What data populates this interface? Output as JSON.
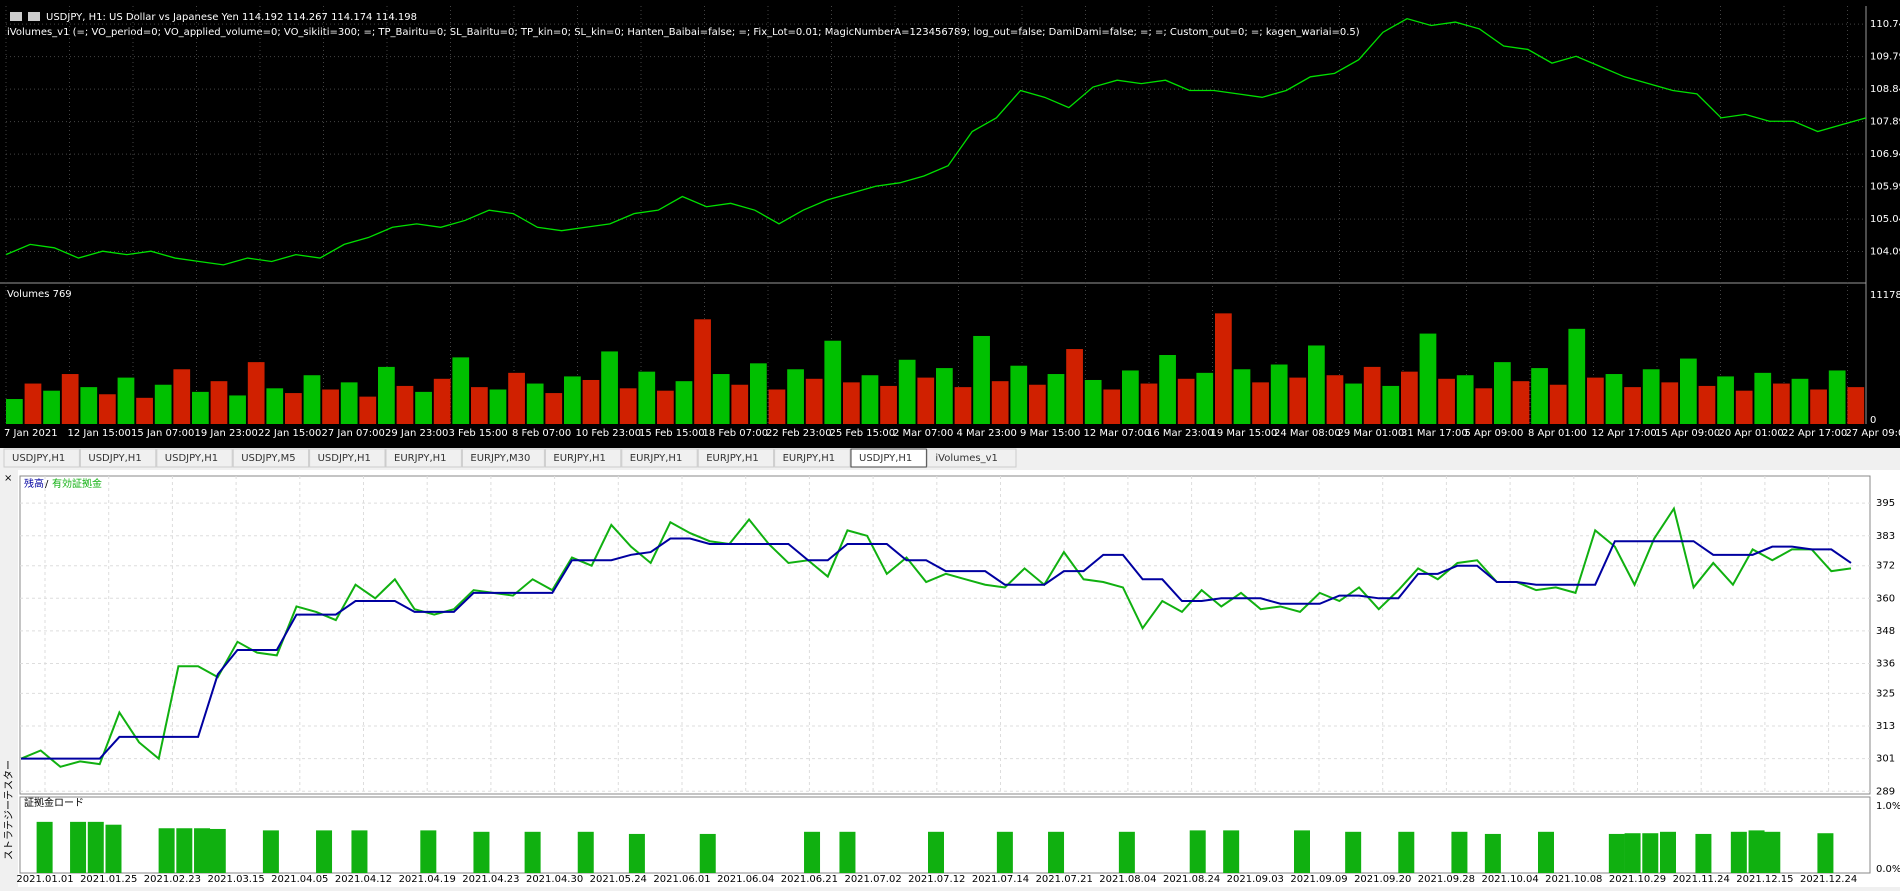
{
  "price_chart": {
    "header": "USDJPY, H1:  US Dollar vs Japanese Yen  114.192 114.267 114.174 114.198",
    "indicator": "iVolumes_v1 (=; VO_period=0; VO_applied_volume=0; VO_sikiiti=300; =; TP_Bairitu=0; SL_Bairitu=0; TP_kin=0; SL_kin=0; Hanten_Baibai=false; =; Fix_Lot=0.01; MagicNumberA=123456789; log_out=false; DamiDami=false; =; =; Custom_out=0; =; kagen_wariai=0.5)",
    "color": "#00e000",
    "values": [
      104.0,
      104.3,
      104.2,
      103.9,
      104.1,
      104.0,
      104.1,
      103.9,
      103.8,
      103.7,
      103.9,
      103.8,
      104.0,
      103.9,
      104.3,
      104.5,
      104.8,
      104.9,
      104.8,
      105.0,
      105.3,
      105.2,
      104.8,
      104.7,
      104.8,
      104.9,
      105.2,
      105.3,
      105.7,
      105.4,
      105.5,
      105.3,
      104.9,
      105.3,
      105.6,
      105.8,
      106.0,
      106.1,
      106.3,
      106.6,
      107.6,
      108.0,
      108.8,
      108.6,
      108.3,
      108.9,
      109.1,
      109.0,
      109.1,
      108.8,
      108.8,
      108.7,
      108.6,
      108.8,
      109.2,
      109.3,
      109.7,
      110.5,
      110.9,
      110.7,
      110.8,
      110.6,
      110.1,
      110.0,
      109.6,
      109.8,
      109.5,
      109.2,
      109.0,
      108.8,
      108.7,
      108.0,
      108.1,
      107.9,
      107.9,
      107.6,
      107.8,
      108.0
    ],
    "ylim": [
      103.2,
      111.27
    ],
    "yticks": [
      110.74,
      109.79,
      108.84,
      107.89,
      106.94,
      105.99,
      105.04,
      104.09
    ]
  },
  "volume_chart": {
    "label": "Volumes 769",
    "colors": [
      "#00c000",
      "#d02000"
    ],
    "values": [
      2100,
      3400,
      2800,
      4200,
      3100,
      2500,
      3900,
      2200,
      3300,
      4600,
      2700,
      3600,
      2400,
      5200,
      3000,
      2600,
      4100,
      2900,
      3500,
      2300,
      4800,
      3200,
      2700,
      3800,
      5600,
      3100,
      2900,
      4300,
      3400,
      2600,
      4000,
      3700,
      6100,
      3000,
      4400,
      2800,
      3600,
      8800,
      4200,
      3300,
      5100,
      2900,
      4600,
      3800,
      7000,
      3500,
      4100,
      3200,
      5400,
      3900,
      4700,
      3100,
      7400,
      3600,
      4900,
      3300,
      4200,
      6300,
      3700,
      2900,
      4500,
      3400,
      5800,
      3800,
      4300,
      9300,
      4600,
      3500,
      5000,
      3900,
      6600,
      4100,
      3400,
      4800,
      3200,
      4400,
      7600,
      3800,
      4100,
      3000,
      5200,
      3600,
      4700,
      3300,
      8000,
      3900,
      4200,
      3100,
      4600,
      3500,
      5500,
      3200,
      4000,
      2800,
      4300,
      3400,
      3800,
      2900,
      4500,
      3100
    ],
    "ylim": [
      0,
      11600
    ],
    "yticks": [
      11178,
      0
    ]
  },
  "time_axis": [
    "7 Jan 2021",
    "12 Jan 15:00",
    "15 Jan 07:00",
    "19 Jan 23:00",
    "22 Jan 15:00",
    "27 Jan 07:00",
    "29 Jan 23:00",
    "3 Feb 15:00",
    "8 Feb 07:00",
    "10 Feb 23:00",
    "15 Feb 15:00",
    "18 Feb 07:00",
    "22 Feb 23:00",
    "25 Feb 15:00",
    "2 Mar 07:00",
    "4 Mar 23:00",
    "9 Mar 15:00",
    "12 Mar 07:00",
    "16 Mar 23:00",
    "19 Mar 15:00",
    "24 Mar 08:00",
    "29 Mar 01:00",
    "31 Mar 17:00",
    "5 Apr 09:00",
    "8 Apr 01:00",
    "12 Apr 17:00",
    "15 Apr 09:00",
    "20 Apr 01:00",
    "22 Apr 17:00",
    "27 Apr 09:00"
  ],
  "tabs": [
    "USDJPY,H1",
    "USDJPY,H1",
    "USDJPY,H1",
    "USDJPY,M5",
    "USDJPY,H1",
    "EURJPY,H1",
    "EURJPY,M30",
    "EURJPY,H1",
    "EURJPY,H1",
    "EURJPY,H1",
    "EURJPY,H1",
    "USDJPY,H1",
    "iVolumes_v1"
  ],
  "active_tab": 11,
  "tester": {
    "side_label": "ストラテジーテスター",
    "legend": [
      {
        "name": "残高",
        "color": "#0000a0"
      },
      {
        "name": "有効証拠金",
        "color": "#10b010"
      }
    ],
    "legend_separator": "/",
    "balance": [
      301,
      301,
      301,
      301,
      301,
      309,
      309,
      309,
      309,
      309,
      332,
      341,
      341,
      341,
      354,
      354,
      354,
      359,
      359,
      359,
      355,
      355,
      355,
      362,
      362,
      362,
      362,
      362,
      374,
      374,
      374,
      376,
      377,
      382,
      382,
      380,
      380,
      380,
      380,
      380,
      374,
      374,
      380,
      380,
      380,
      374,
      374,
      370,
      370,
      370,
      365,
      365,
      365,
      370,
      370,
      376,
      376,
      367,
      367,
      359,
      359,
      360,
      360,
      360,
      358,
      358,
      358,
      361,
      361,
      360,
      360,
      369,
      369,
      372,
      372,
      366,
      366,
      365,
      365,
      365,
      365,
      381,
      381,
      381,
      381,
      381,
      376,
      376,
      376,
      379,
      379,
      378,
      378,
      373
    ],
    "equity": [
      301,
      304,
      298,
      300,
      299,
      318,
      307,
      301,
      335,
      335,
      331,
      344,
      340,
      339,
      357,
      355,
      352,
      365,
      360,
      367,
      356,
      354,
      356,
      363,
      362,
      361,
      367,
      363,
      375,
      372,
      387,
      379,
      373,
      388,
      384,
      381,
      380,
      389,
      380,
      373,
      374,
      368,
      385,
      383,
      369,
      375,
      366,
      369,
      367,
      365,
      364,
      371,
      365,
      377,
      367,
      366,
      364,
      349,
      359,
      355,
      363,
      357,
      362,
      356,
      357,
      355,
      362,
      359,
      364,
      356,
      363,
      371,
      367,
      373,
      374,
      366,
      366,
      363,
      364,
      362,
      385,
      379,
      365,
      382,
      393,
      364,
      373,
      365,
      378,
      374,
      378,
      378,
      370,
      371
    ],
    "ylim": [
      288,
      405
    ],
    "yticks": [
      395,
      383,
      372,
      360,
      348,
      336,
      325,
      313,
      301,
      289
    ],
    "margin": {
      "title": "証拠金ロード",
      "color": "#10b010",
      "x": [
        1.2,
        2.9,
        3.8,
        4.7,
        7.4,
        8.3,
        9.2,
        10.0,
        12.7,
        15.4,
        17.2,
        20.7,
        23.4,
        26.0,
        28.7,
        31.3,
        34.9,
        40.2,
        42.0,
        46.5,
        50.0,
        52.6,
        56.2,
        59.8,
        61.5,
        65.1,
        67.7,
        70.4,
        73.1,
        74.8,
        77.5,
        81.1,
        81.9,
        82.8,
        83.7,
        85.5,
        87.3,
        88.2,
        89.0,
        91.7
      ],
      "values": [
        0.72,
        0.72,
        0.72,
        0.68,
        0.63,
        0.63,
        0.63,
        0.62,
        0.6,
        0.6,
        0.6,
        0.6,
        0.58,
        0.58,
        0.58,
        0.55,
        0.55,
        0.58,
        0.58,
        0.58,
        0.58,
        0.58,
        0.58,
        0.6,
        0.6,
        0.6,
        0.58,
        0.58,
        0.58,
        0.55,
        0.58,
        0.55,
        0.56,
        0.56,
        0.58,
        0.55,
        0.58,
        0.6,
        0.58,
        0.56
      ],
      "ylim": [
        0,
        1.07
      ],
      "yticks": [
        {
          "value": 1.0,
          "label": "1.0%"
        },
        {
          "value": 0,
          "label": "0.0%"
        }
      ]
    },
    "date_labels": [
      "2021.01.01",
      "2021.01.25",
      "2021.02.23",
      "2021.03.15",
      "2021.04.05",
      "2021.04.12",
      "2021.04.19",
      "2021.04.23",
      "2021.04.30",
      "2021.05.24",
      "2021.06.01",
      "2021.06.04",
      "2021.06.21",
      "2021.07.02",
      "2021.07.12",
      "2021.07.14",
      "2021.07.21",
      "2021.08.04",
      "2021.08.24",
      "2021.09.03",
      "2021.09.09",
      "2021.09.20",
      "2021.09.28",
      "2021.10.04",
      "2021.10.08",
      "2021.10.29",
      "2021.11.24",
      "2021.12.15",
      "2021.12.24"
    ]
  }
}
